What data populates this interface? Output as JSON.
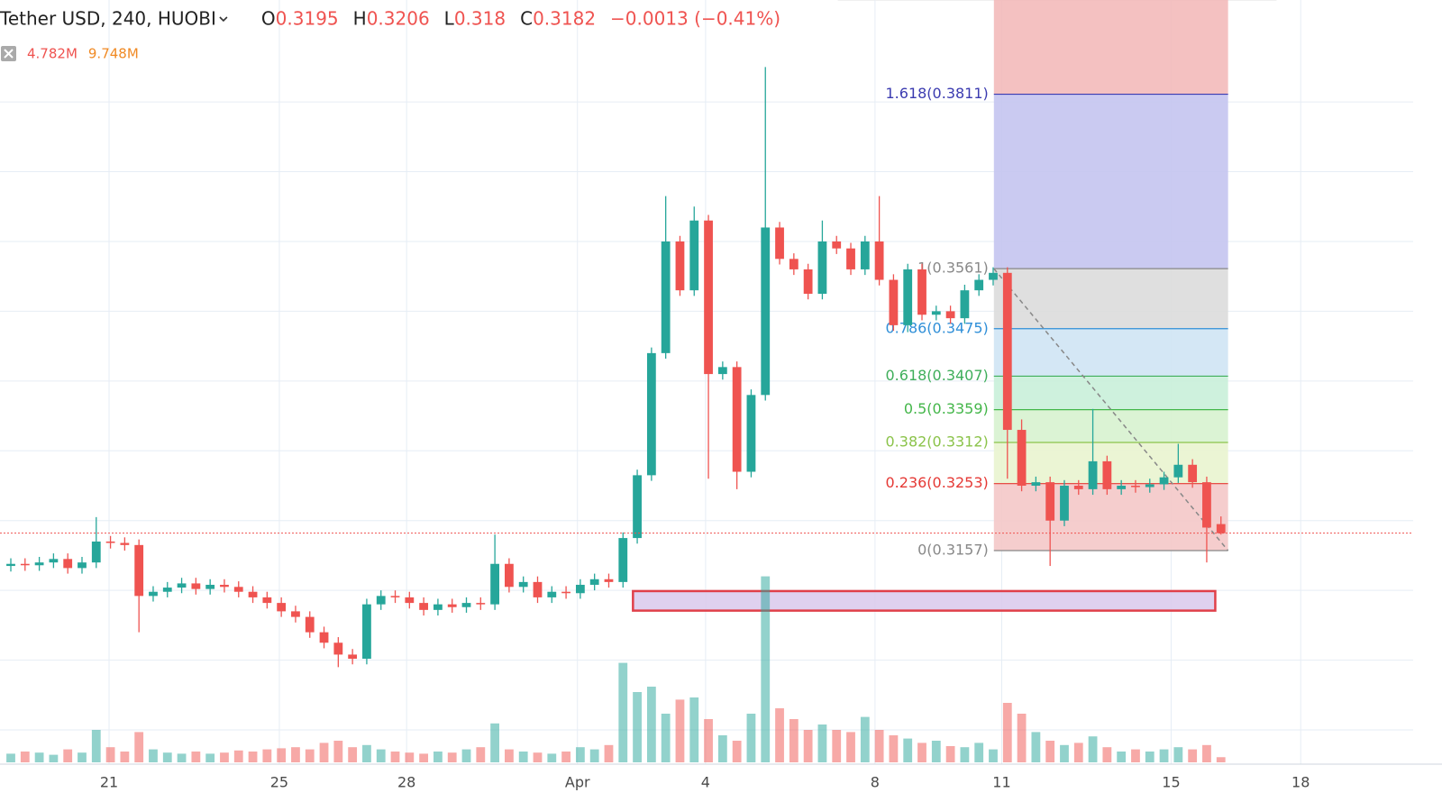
{
  "chart_data": {
    "type": "candlestick",
    "header": {
      "title": "Tether USD, 240, HUOBI",
      "ohlc": [
        {
          "label": "O",
          "value": 0.3195
        },
        {
          "label": "H",
          "value": 0.3206
        },
        {
          "label": "L",
          "value": 0.318
        },
        {
          "label": "C",
          "value": 0.3182
        }
      ],
      "change": "−0.0013 (−0.41%)",
      "volume": "4.782M",
      "volume_ma": "9.748M"
    },
    "up_color": "#26a69a",
    "down_color": "#ef5350",
    "candles": {
      "open": [
        0.3135,
        0.3138,
        0.3136,
        0.314,
        0.3145,
        0.3132,
        0.314,
        0.317,
        0.3168,
        0.3165,
        0.3092,
        0.3098,
        0.3104,
        0.311,
        0.3102,
        0.3108,
        0.3105,
        0.3098,
        0.309,
        0.3082,
        0.307,
        0.3062,
        0.304,
        0.3025,
        0.3008,
        0.3002,
        0.308,
        0.3092,
        0.309,
        0.3082,
        0.3072,
        0.308,
        0.3076,
        0.3082,
        0.308,
        0.3138,
        0.3105,
        0.3112,
        0.309,
        0.3098,
        0.3096,
        0.3108,
        0.3116,
        0.3112,
        0.3175,
        0.3265,
        0.344,
        0.36,
        0.353,
        0.363,
        0.341,
        0.342,
        0.327,
        0.338,
        0.362,
        0.3575,
        0.356,
        0.3525,
        0.36,
        0.359,
        0.356,
        0.36,
        0.3545,
        0.348,
        0.356,
        0.3495,
        0.35,
        0.349,
        0.353,
        0.3545,
        0.3555,
        0.333,
        0.325,
        0.3255,
        0.32,
        0.325,
        0.3245,
        0.3285,
        0.3245,
        0.325,
        0.3248,
        0.3252,
        0.3262,
        0.328,
        0.3255,
        0.3195
      ],
      "high": [
        0.3146,
        0.3146,
        0.3148,
        0.3153,
        0.3153,
        0.3148,
        0.3205,
        0.3178,
        0.3176,
        0.3173,
        0.3106,
        0.3112,
        0.3118,
        0.3118,
        0.3116,
        0.3116,
        0.3113,
        0.3106,
        0.3098,
        0.309,
        0.3078,
        0.307,
        0.3048,
        0.3033,
        0.3016,
        0.3088,
        0.31,
        0.31,
        0.3098,
        0.309,
        0.3088,
        0.3088,
        0.309,
        0.309,
        0.318,
        0.3146,
        0.312,
        0.312,
        0.3106,
        0.3106,
        0.3116,
        0.3124,
        0.3124,
        0.3183,
        0.3273,
        0.3448,
        0.3665,
        0.3608,
        0.365,
        0.3638,
        0.3428,
        0.3428,
        0.3388,
        0.385,
        0.3628,
        0.3583,
        0.3568,
        0.363,
        0.3608,
        0.3598,
        0.3608,
        0.3665,
        0.3553,
        0.3568,
        0.3568,
        0.3508,
        0.3508,
        0.3538,
        0.3553,
        0.3563,
        0.3563,
        0.3345,
        0.3263,
        0.3263,
        0.3258,
        0.3258,
        0.336,
        0.3293,
        0.3258,
        0.3258,
        0.326,
        0.327,
        0.331,
        0.3288,
        0.3263,
        0.3206
      ],
      "low": [
        0.3127,
        0.3128,
        0.3128,
        0.3132,
        0.3124,
        0.3124,
        0.3132,
        0.316,
        0.3157,
        0.304,
        0.3084,
        0.309,
        0.3096,
        0.3094,
        0.3094,
        0.3097,
        0.309,
        0.3082,
        0.3074,
        0.3062,
        0.3054,
        0.3032,
        0.3017,
        0.299,
        0.2994,
        0.2994,
        0.3072,
        0.3082,
        0.3074,
        0.3064,
        0.3064,
        0.3068,
        0.3068,
        0.3072,
        0.3072,
        0.3097,
        0.3097,
        0.3082,
        0.3082,
        0.3088,
        0.3088,
        0.31,
        0.3104,
        0.3104,
        0.3167,
        0.3257,
        0.3432,
        0.3522,
        0.3522,
        0.326,
        0.3402,
        0.3245,
        0.3262,
        0.3372,
        0.3567,
        0.3552,
        0.3517,
        0.3517,
        0.3582,
        0.3552,
        0.3552,
        0.3537,
        0.3472,
        0.347,
        0.3487,
        0.3487,
        0.3482,
        0.3482,
        0.3522,
        0.3537,
        0.326,
        0.3242,
        0.3242,
        0.3135,
        0.3192,
        0.3237,
        0.3237,
        0.3237,
        0.3237,
        0.324,
        0.324,
        0.3244,
        0.3254,
        0.3247,
        0.314,
        0.318
      ],
      "close": [
        0.3138,
        0.3136,
        0.314,
        0.3145,
        0.3132,
        0.314,
        0.317,
        0.3168,
        0.3165,
        0.3092,
        0.3098,
        0.3104,
        0.311,
        0.3102,
        0.3108,
        0.3105,
        0.3098,
        0.309,
        0.3082,
        0.307,
        0.3062,
        0.304,
        0.3025,
        0.3008,
        0.3002,
        0.308,
        0.3092,
        0.309,
        0.3082,
        0.3072,
        0.308,
        0.3076,
        0.3082,
        0.308,
        0.3138,
        0.3105,
        0.3112,
        0.309,
        0.3098,
        0.3096,
        0.3108,
        0.3116,
        0.3112,
        0.3175,
        0.3265,
        0.344,
        0.36,
        0.353,
        0.363,
        0.341,
        0.342,
        0.327,
        0.338,
        0.362,
        0.3575,
        0.356,
        0.3525,
        0.36,
        0.359,
        0.356,
        0.36,
        0.3545,
        0.348,
        0.356,
        0.3495,
        0.35,
        0.349,
        0.353,
        0.3545,
        0.3555,
        0.333,
        0.325,
        0.3255,
        0.32,
        0.325,
        0.3245,
        0.3285,
        0.3245,
        0.325,
        0.3248,
        0.3252,
        0.3262,
        0.328,
        0.3255,
        0.319,
        0.3182
      ],
      "volume": [
        8,
        10,
        9,
        7,
        12,
        9,
        30,
        14,
        10,
        28,
        12,
        9,
        8,
        10,
        8,
        9,
        11,
        10,
        12,
        13,
        14,
        12,
        18,
        20,
        14,
        16,
        12,
        10,
        9,
        8,
        10,
        9,
        12,
        14,
        36,
        12,
        10,
        9,
        8,
        10,
        14,
        12,
        16,
        92,
        65,
        70,
        45,
        58,
        60,
        40,
        25,
        20,
        45,
        172,
        50,
        40,
        30,
        35,
        30,
        28,
        42,
        30,
        25,
        22,
        18,
        20,
        15,
        14,
        18,
        12,
        55,
        45,
        28,
        20,
        16,
        18,
        24,
        14,
        10,
        12,
        10,
        12,
        14,
        12,
        16,
        4.782
      ]
    },
    "xlim": [
      -0.76,
      98.5
    ],
    "xticks": [
      {
        "value": 6.9,
        "label": "21"
      },
      {
        "value": 18.86,
        "label": "25"
      },
      {
        "value": 27.8,
        "label": "28"
      },
      {
        "value": 39.8,
        "label": "Apr"
      },
      {
        "value": 48.8,
        "label": "4"
      },
      {
        "value": 60.7,
        "label": "8"
      },
      {
        "value": 69.6,
        "label": "11"
      },
      {
        "value": 81.5,
        "label": "15"
      },
      {
        "value": 90.6,
        "label": "18"
      }
    ],
    "ylim": [
      0.2851,
      0.3946
    ],
    "yticks": [
      0.29,
      0.3,
      0.31,
      0.32,
      0.33,
      0.34,
      0.35,
      0.36,
      0.37,
      0.38
    ],
    "volume_lim": [
      0,
      180
    ],
    "grid": true,
    "fib": {
      "x_range": [
        69.05,
        85.5
      ],
      "top_fill": "#f2b6b6",
      "levels": [
        {
          "label": "1.618(0.3811)",
          "value": 0.3811,
          "color": "#3b3bb0",
          "fill": "#c4c4f0"
        },
        {
          "label": "1(0.3561)",
          "value": 0.3561,
          "color": "#888888",
          "fill": "#dcdcdc"
        },
        {
          "label": "0.786(0.3475)",
          "value": 0.3475,
          "color": "#2f8fd8",
          "fill": "#cfe4f4"
        },
        {
          "label": "0.618(0.3407)",
          "value": 0.3407,
          "color": "#3fae5a",
          "fill": "#c9f0d9"
        },
        {
          "label": "0.5(0.3359)",
          "value": 0.3359,
          "color": "#43b649",
          "fill": "#d7f2cf"
        },
        {
          "label": "0.382(0.3312)",
          "value": 0.3312,
          "color": "#8bc34a",
          "fill": "#e9f4cf"
        },
        {
          "label": "0.236(0.3253)",
          "value": 0.3253,
          "color": "#e53935",
          "fill": "#f4c8c8"
        },
        {
          "label": "0(0.3157)",
          "value": 0.3157,
          "color": "#888888"
        }
      ]
    },
    "box": {
      "x": [
        43.7,
        84.6
      ],
      "y": [
        0.3071,
        0.3099
      ],
      "color": "#e0404a",
      "fill": "#d9c9ec"
    }
  }
}
